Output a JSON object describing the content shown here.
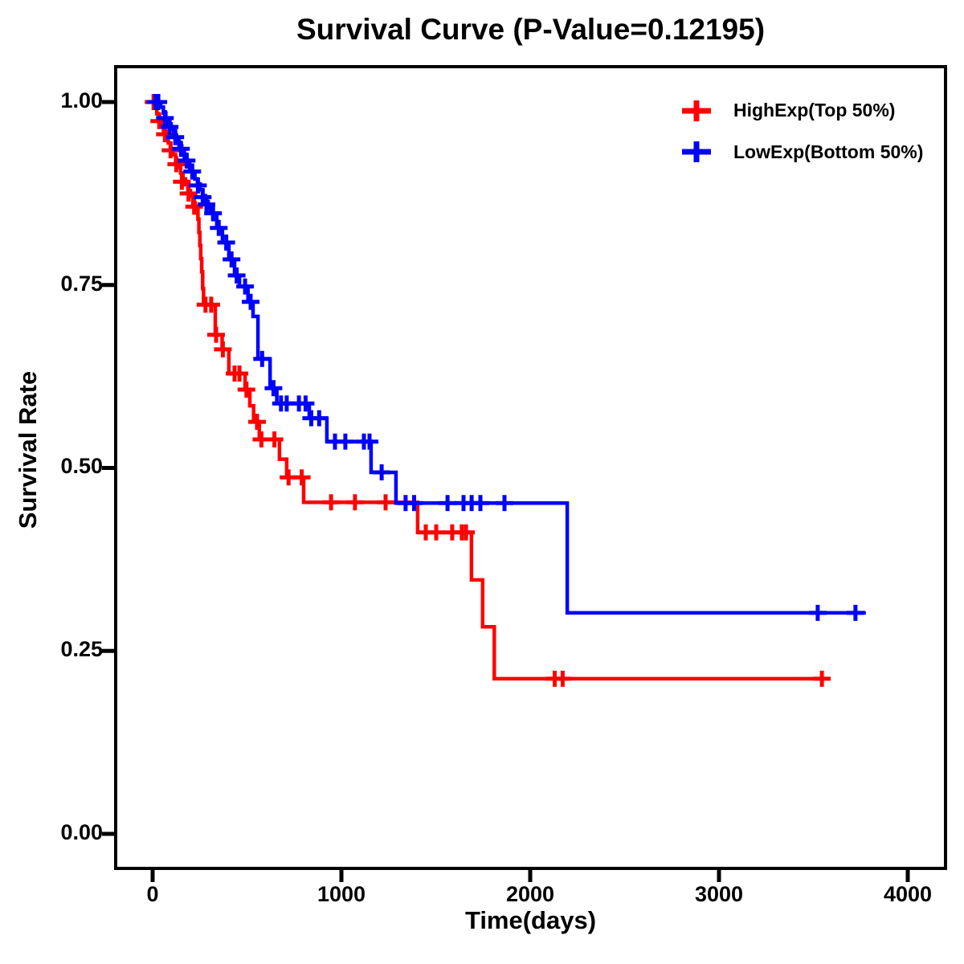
{
  "title": "Survival Curve (P-Value=0.12195)",
  "p_value": "0.12195",
  "x_axis": {
    "label": "Time(days)",
    "ticks": [
      "0",
      "1000",
      "2000",
      "3000",
      "4000"
    ],
    "tick_values": [
      0,
      1000,
      2000,
      3000,
      4000
    ]
  },
  "y_axis": {
    "label": "Survival Rate",
    "ticks": [
      "1.00",
      "0.75",
      "0.50",
      "0.25",
      "0.00"
    ],
    "tick_values": [
      1.0,
      0.75,
      0.5,
      0.25,
      0.0
    ]
  },
  "style": {
    "axis_color": "#000000",
    "background": "#FFFFFF"
  },
  "chart_data": {
    "type": "line",
    "subtype": "kaplan-meier-step",
    "title": "Survival Curve (P-Value=0.12195)",
    "xlabel": "Time(days)",
    "ylabel": "Survival Rate",
    "xlim": [
      -200,
      4200
    ],
    "ylim": [
      -0.05,
      1.05
    ],
    "grid": false,
    "legend_position": "top-right",
    "series": [
      {
        "name": "HighExp(Top 50%)",
        "color": "#FF0000",
        "steps": [
          [
            0,
            1.0
          ],
          [
            10,
            0.992
          ],
          [
            22,
            0.984
          ],
          [
            34,
            0.976
          ],
          [
            46,
            0.968
          ],
          [
            58,
            0.96
          ],
          [
            70,
            0.952
          ],
          [
            83,
            0.944
          ],
          [
            96,
            0.936
          ],
          [
            109,
            0.928
          ],
          [
            122,
            0.919
          ],
          [
            135,
            0.911
          ],
          [
            148,
            0.903
          ],
          [
            161,
            0.895
          ],
          [
            174,
            0.887
          ],
          [
            187,
            0.879
          ],
          [
            200,
            0.871
          ],
          [
            213,
            0.862
          ],
          [
            226,
            0.854
          ],
          [
            240,
            0.84
          ],
          [
            245,
            0.822
          ],
          [
            250,
            0.804
          ],
          [
            255,
            0.786
          ],
          [
            260,
            0.768
          ],
          [
            265,
            0.745
          ],
          [
            270,
            0.723
          ],
          [
            332,
            0.682
          ],
          [
            368,
            0.662
          ],
          [
            404,
            0.629
          ],
          [
            490,
            0.607
          ],
          [
            515,
            0.585
          ],
          [
            535,
            0.563
          ],
          [
            565,
            0.539
          ],
          [
            672,
            0.512
          ],
          [
            710,
            0.487
          ],
          [
            800,
            0.453
          ],
          [
            1404,
            0.412
          ],
          [
            1689,
            0.347
          ],
          [
            1748,
            0.283
          ],
          [
            1810,
            0.212
          ]
        ],
        "censors": [
          [
            5,
            1.0
          ],
          [
            35,
            0.974
          ],
          [
            65,
            0.956
          ],
          [
            95,
            0.934
          ],
          [
            125,
            0.915
          ],
          [
            155,
            0.891
          ],
          [
            190,
            0.875
          ],
          [
            220,
            0.857
          ],
          [
            280,
            0.723
          ],
          [
            310,
            0.723
          ],
          [
            336,
            0.682
          ],
          [
            372,
            0.662
          ],
          [
            434,
            0.629
          ],
          [
            460,
            0.629
          ],
          [
            497,
            0.607
          ],
          [
            553,
            0.563
          ],
          [
            576,
            0.539
          ],
          [
            645,
            0.539
          ],
          [
            720,
            0.487
          ],
          [
            790,
            0.487
          ],
          [
            945,
            0.453
          ],
          [
            1072,
            0.453
          ],
          [
            1234,
            0.453
          ],
          [
            1447,
            0.412
          ],
          [
            1502,
            0.412
          ],
          [
            1587,
            0.412
          ],
          [
            1638,
            0.412
          ],
          [
            1660,
            0.412
          ],
          [
            2130,
            0.212
          ],
          [
            2172,
            0.212
          ],
          [
            3545,
            0.212
          ]
        ],
        "end_time": 3560
      },
      {
        "name": "LowExp(Bottom 50%)",
        "color": "#0000FF",
        "steps": [
          [
            0,
            1.0
          ],
          [
            43,
            0.993
          ],
          [
            57,
            0.985
          ],
          [
            70,
            0.978
          ],
          [
            84,
            0.97
          ],
          [
            98,
            0.963
          ],
          [
            112,
            0.955
          ],
          [
            126,
            0.948
          ],
          [
            140,
            0.94
          ],
          [
            154,
            0.933
          ],
          [
            168,
            0.925
          ],
          [
            182,
            0.918
          ],
          [
            196,
            0.91
          ],
          [
            210,
            0.903
          ],
          [
            224,
            0.895
          ],
          [
            238,
            0.888
          ],
          [
            252,
            0.88
          ],
          [
            266,
            0.872
          ],
          [
            280,
            0.864
          ],
          [
            294,
            0.856
          ],
          [
            306,
            0.848
          ],
          [
            340,
            0.828
          ],
          [
            370,
            0.808
          ],
          [
            404,
            0.785
          ],
          [
            434,
            0.763
          ],
          [
            460,
            0.748
          ],
          [
            505,
            0.727
          ],
          [
            532,
            0.707
          ],
          [
            558,
            0.649
          ],
          [
            622,
            0.609
          ],
          [
            658,
            0.588
          ],
          [
            830,
            0.568
          ],
          [
            923,
            0.536
          ],
          [
            1157,
            0.494
          ],
          [
            1289,
            0.452
          ],
          [
            2196,
            0.302
          ]
        ],
        "censors": [
          [
            15,
            1.0
          ],
          [
            30,
            1.0
          ],
          [
            65,
            0.978
          ],
          [
            90,
            0.966
          ],
          [
            120,
            0.952
          ],
          [
            150,
            0.936
          ],
          [
            180,
            0.92
          ],
          [
            210,
            0.905
          ],
          [
            240,
            0.886
          ],
          [
            265,
            0.87
          ],
          [
            285,
            0.86
          ],
          [
            320,
            0.848
          ],
          [
            350,
            0.828
          ],
          [
            390,
            0.808
          ],
          [
            418,
            0.785
          ],
          [
            445,
            0.763
          ],
          [
            490,
            0.748
          ],
          [
            519,
            0.727
          ],
          [
            580,
            0.649
          ],
          [
            640,
            0.609
          ],
          [
            680,
            0.588
          ],
          [
            710,
            0.588
          ],
          [
            775,
            0.588
          ],
          [
            810,
            0.588
          ],
          [
            840,
            0.568
          ],
          [
            882,
            0.568
          ],
          [
            966,
            0.536
          ],
          [
            1021,
            0.536
          ],
          [
            1119,
            0.536
          ],
          [
            1149,
            0.536
          ],
          [
            1213,
            0.494
          ],
          [
            1340,
            0.452
          ],
          [
            1385,
            0.452
          ],
          [
            1562,
            0.452
          ],
          [
            1647,
            0.452
          ],
          [
            1690,
            0.452
          ],
          [
            1736,
            0.452
          ],
          [
            1864,
            0.452
          ],
          [
            3523,
            0.302
          ],
          [
            3723,
            0.302
          ]
        ],
        "end_time": 3778
      }
    ]
  }
}
